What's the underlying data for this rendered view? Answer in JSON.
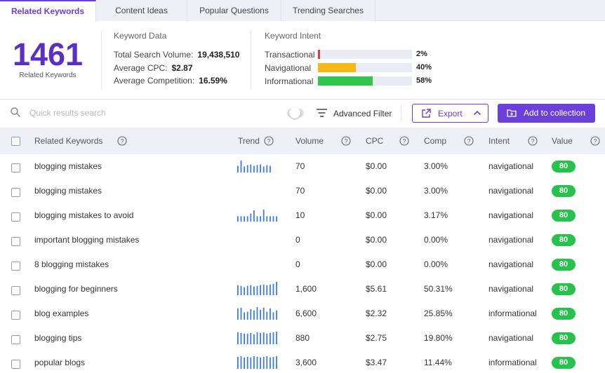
{
  "tabs": [
    {
      "label": "Related Keywords",
      "active": true
    },
    {
      "label": "Content Ideas",
      "active": false
    },
    {
      "label": "Popular Questions",
      "active": false
    },
    {
      "label": "Trending Searches",
      "active": false
    }
  ],
  "summary": {
    "count": "1461",
    "count_label": "Related Keywords",
    "keyword_data_title": "Keyword Data",
    "total_volume_label": "Total Search Volume:",
    "total_volume": "19,438,510",
    "avg_cpc_label": "Average CPC:",
    "avg_cpc": "$2.87",
    "avg_comp_label": "Average Competition:",
    "avg_comp": "16.59%"
  },
  "intent": {
    "title": "Keyword Intent",
    "items": [
      {
        "label": "Transactional",
        "percent_text": "2%",
        "value": 0.02,
        "color": "#e53935"
      },
      {
        "label": "Navigational",
        "percent_text": "40%",
        "value": 0.4,
        "color": "#f5b915"
      },
      {
        "label": "Informational",
        "percent_text": "58%",
        "value": 0.58,
        "color": "#2ec64b"
      }
    ]
  },
  "toolbar": {
    "search_placeholder": "Quick results search",
    "filter_label": "Advanced Filter",
    "export_label": "Export",
    "collection_label": "Add to collection",
    "accent_color": "#6b3fd9"
  },
  "columns": {
    "keyword": "Related Keywords",
    "trend": "Trend",
    "volume": "Volume",
    "cpc": "CPC",
    "comp": "Comp",
    "intent": "Intent",
    "value": "Value"
  },
  "rows": [
    {
      "keyword": "blogging mistakes",
      "trend": [
        0.5,
        0.9,
        0.45,
        0.55,
        0.6,
        0.5,
        0.55,
        0.6,
        0.45,
        0.55,
        0.5
      ],
      "volume": "70",
      "cpc": "$0.00",
      "comp": "3.00%",
      "intent": "navigational",
      "value": "80"
    },
    {
      "keyword": "blogging mistakes",
      "trend": [],
      "volume": "70",
      "cpc": "$0.00",
      "comp": "3.00%",
      "intent": "navigational",
      "value": "80"
    },
    {
      "keyword": "blogging mistakes to avoid",
      "trend": [
        0.4,
        0.4,
        0.4,
        0.4,
        0.6,
        0.85,
        0.4,
        0.4,
        0.9,
        0.4,
        0.4,
        0.4,
        0.4
      ],
      "volume": "10",
      "cpc": "$0.00",
      "comp": "3.17%",
      "intent": "navigational",
      "value": "80"
    },
    {
      "keyword": "important blogging mistakes",
      "trend": [],
      "volume": "0",
      "cpc": "$0.00",
      "comp": "0.00%",
      "intent": "navigational",
      "value": "80"
    },
    {
      "keyword": "8 blogging mistakes",
      "trend": [],
      "volume": "0",
      "cpc": "$0.00",
      "comp": "0.00%",
      "intent": "navigational",
      "value": "80"
    },
    {
      "keyword": "blogging for beginners",
      "trend": [
        0.75,
        0.7,
        0.6,
        0.7,
        0.75,
        0.65,
        0.7,
        0.75,
        0.8,
        0.75,
        0.8,
        0.85,
        1.0
      ],
      "volume": "1,600",
      "cpc": "$5.61",
      "comp": "50.31%",
      "intent": "navigational",
      "value": "80"
    },
    {
      "keyword": "blog examples",
      "trend": [
        0.85,
        0.9,
        0.55,
        0.6,
        0.8,
        0.7,
        0.95,
        0.75,
        0.9,
        0.6,
        0.85,
        0.55,
        0.7
      ],
      "volume": "6,600",
      "cpc": "$2.32",
      "comp": "25.85%",
      "intent": "informational",
      "value": "80"
    },
    {
      "keyword": "blogging tips",
      "trend": [
        0.9,
        0.85,
        0.8,
        0.8,
        0.85,
        0.75,
        0.9,
        0.85,
        0.9,
        0.8,
        0.85,
        0.9,
        0.95
      ],
      "volume": "880",
      "cpc": "$2.75",
      "comp": "19.80%",
      "intent": "navigational",
      "value": "80"
    },
    {
      "keyword": "popular blogs",
      "trend": [
        0.9,
        0.95,
        0.85,
        0.9,
        0.85,
        0.95,
        0.9,
        0.85,
        0.9,
        0.95,
        0.85,
        0.9,
        0.95
      ],
      "volume": "3,600",
      "cpc": "$3.47",
      "comp": "11.44%",
      "intent": "informational",
      "value": "80"
    }
  ]
}
